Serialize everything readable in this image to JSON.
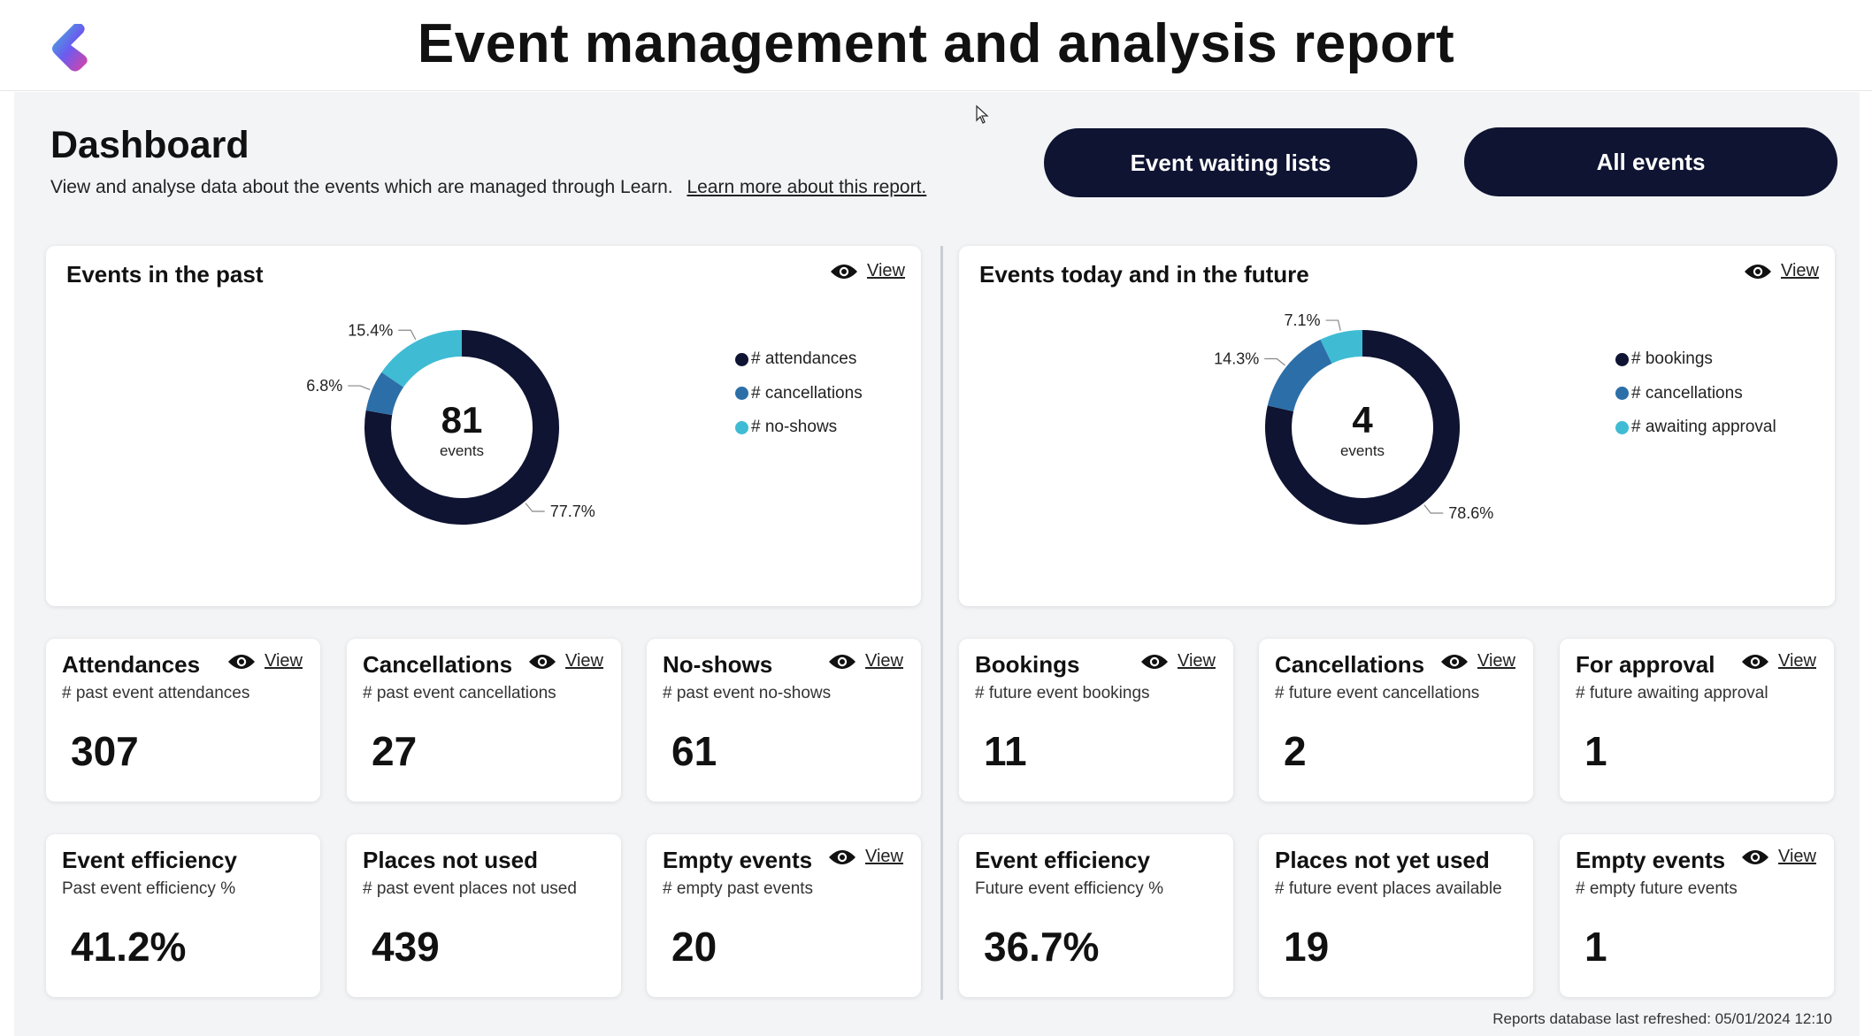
{
  "header": {
    "title": "Event management and analysis report"
  },
  "dashboard": {
    "title": "Dashboard",
    "subtitle": "View and analyse data about the events which are managed through Learn.",
    "learn_more": "Learn more about this report."
  },
  "buttons": {
    "waiting_lists": "Event waiting lists",
    "all_events": "All events"
  },
  "view_label": "View",
  "colors": {
    "navy": "#0f1432",
    "blue": "#2c6fa8",
    "teal": "#3fbcd4"
  },
  "chart_data": [
    {
      "type": "pie",
      "title": "Events in the past",
      "center_value": "81",
      "center_label": "events",
      "series": [
        {
          "name": "# attendances",
          "value": 77.7,
          "label": "77.7%",
          "color": "#0f1432"
        },
        {
          "name": "# cancellations",
          "value": 6.8,
          "label": "6.8%",
          "color": "#2c6fa8"
        },
        {
          "name": "# no-shows",
          "value": 15.4,
          "label": "15.4%",
          "color": "#3fbcd4"
        }
      ]
    },
    {
      "type": "pie",
      "title": "Events today and in the future",
      "center_value": "4",
      "center_label": "events",
      "series": [
        {
          "name": "# bookings",
          "value": 78.6,
          "label": "78.6%",
          "color": "#0f1432"
        },
        {
          "name": "# cancellations",
          "value": 14.3,
          "label": "14.3%",
          "color": "#2c6fa8"
        },
        {
          "name": "# awaiting approval",
          "value": 7.1,
          "label": "7.1%",
          "color": "#3fbcd4"
        }
      ]
    }
  ],
  "stats": [
    {
      "title": "Attendances",
      "subtitle": "# past event attendances",
      "value": "307"
    },
    {
      "title": "Cancellations",
      "subtitle": "# past event cancellations",
      "value": "27"
    },
    {
      "title": "No-shows",
      "subtitle": "# past event no-shows",
      "value": "61"
    },
    {
      "title": "Bookings",
      "subtitle": "# future event bookings",
      "value": "11"
    },
    {
      "title": "Cancellations",
      "subtitle": "# future event cancellations",
      "value": "2"
    },
    {
      "title": "For approval",
      "subtitle": "# future awaiting approval",
      "value": "1"
    },
    {
      "title": "Event efficiency",
      "subtitle": "Past event efficiency %",
      "value": "41.2%"
    },
    {
      "title": "Places not used",
      "subtitle": "# past event places not used",
      "value": "439"
    },
    {
      "title": "Empty events",
      "subtitle": "# empty past events",
      "value": "20"
    },
    {
      "title": "Event efficiency",
      "subtitle": "Future event efficiency %",
      "value": "36.7%"
    },
    {
      "title": "Places not yet used",
      "subtitle": "# future event places available",
      "value": "19"
    },
    {
      "title": "Empty events",
      "subtitle": "# empty future events",
      "value": "1"
    }
  ],
  "footer": {
    "refreshed": "Reports database last refreshed: 05/01/2024 12:10"
  }
}
